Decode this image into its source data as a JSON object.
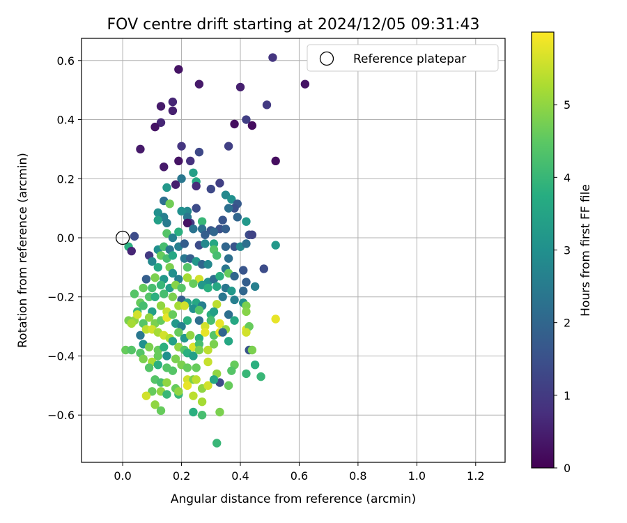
{
  "chart_data": {
    "type": "scatter",
    "title": "FOV centre drift starting at 2024/12/05 09:31:43",
    "xlabel": "Angular distance from reference (arcmin)",
    "ylabel": "Rotation from reference (arcmin)",
    "xlim": [
      -0.14,
      1.3
    ],
    "ylim": [
      -0.76,
      0.675
    ],
    "x_ticks": [
      0.0,
      0.2,
      0.4,
      0.6,
      0.8,
      1.0,
      1.2
    ],
    "x_tick_labels": [
      "0.0",
      "0.2",
      "0.4",
      "0.6",
      "0.8",
      "1.0",
      "1.2"
    ],
    "y_ticks": [
      -0.6,
      -0.4,
      -0.2,
      0.0,
      0.2,
      0.4,
      0.6
    ],
    "y_tick_labels": [
      "−0.6",
      "−0.4",
      "−0.2",
      "0.0",
      "0.2",
      "0.4",
      "0.6"
    ],
    "grid": true,
    "legend": {
      "placement": "top-right",
      "entries": [
        "Reference platepar"
      ]
    },
    "reference_point": {
      "x": 0.0,
      "y": 0.0
    },
    "colorbar": {
      "label": "Hours from first FF file",
      "colormap": "viridis",
      "range": [
        0,
        6
      ],
      "ticks": [
        0,
        1,
        2,
        3,
        4,
        5
      ],
      "tick_labels": [
        "0",
        "1",
        "2",
        "3",
        "4",
        "5"
      ]
    },
    "points": [
      [
        0.51,
        0.61,
        0.9
      ],
      [
        0.62,
        0.52,
        0.3
      ],
      [
        0.19,
        0.57,
        0.3
      ],
      [
        0.26,
        0.52,
        0.4
      ],
      [
        0.4,
        0.51,
        0.5
      ],
      [
        0.17,
        0.46,
        0.6
      ],
      [
        0.13,
        0.445,
        0.4
      ],
      [
        0.17,
        0.43,
        0.5
      ],
      [
        0.49,
        0.45,
        1.0
      ],
      [
        0.42,
        0.4,
        1.1
      ],
      [
        0.13,
        0.39,
        0.6
      ],
      [
        0.11,
        0.375,
        0.3
      ],
      [
        0.38,
        0.385,
        0.2
      ],
      [
        0.44,
        0.38,
        0.2
      ],
      [
        0.06,
        0.3,
        0.4
      ],
      [
        0.2,
        0.31,
        0.9
      ],
      [
        0.36,
        0.31,
        1.1
      ],
      [
        0.26,
        0.29,
        1.3
      ],
      [
        0.52,
        0.26,
        0.2
      ],
      [
        0.19,
        0.26,
        0.3
      ],
      [
        0.23,
        0.26,
        0.8
      ],
      [
        0.14,
        0.24,
        0.4
      ],
      [
        0.24,
        0.22,
        3.4
      ],
      [
        0.2,
        0.2,
        2.4
      ],
      [
        0.25,
        0.19,
        3.6
      ],
      [
        0.33,
        0.185,
        1.1
      ],
      [
        0.18,
        0.18,
        0.5
      ],
      [
        0.25,
        0.175,
        0.7
      ],
      [
        0.15,
        0.17,
        3.2
      ],
      [
        0.3,
        0.165,
        1.3
      ],
      [
        0.35,
        0.145,
        2.8
      ],
      [
        0.37,
        0.13,
        3.0
      ],
      [
        0.14,
        0.125,
        2.2
      ],
      [
        0.16,
        0.115,
        4.7
      ],
      [
        0.39,
        0.115,
        1.7
      ],
      [
        0.38,
        0.1,
        1.5
      ],
      [
        0.36,
        0.1,
        2.2
      ],
      [
        0.25,
        0.1,
        1.4
      ],
      [
        0.22,
        0.09,
        2.8
      ],
      [
        0.2,
        0.09,
        3.0
      ],
      [
        0.12,
        0.085,
        3.0
      ],
      [
        0.39,
        0.07,
        2.0
      ],
      [
        0.22,
        0.07,
        2.4
      ],
      [
        0.14,
        0.07,
        2.6
      ],
      [
        0.12,
        0.06,
        3.4
      ],
      [
        0.27,
        0.055,
        4.0
      ],
      [
        0.42,
        0.055,
        3.2
      ],
      [
        0.15,
        0.05,
        2.5
      ],
      [
        0.23,
        0.05,
        1.0
      ],
      [
        0.22,
        0.05,
        0.3
      ],
      [
        0.34,
        0.06,
        1.6
      ],
      [
        0.33,
        0.03,
        1.5
      ],
      [
        0.35,
        0.03,
        1.8
      ],
      [
        0.3,
        0.025,
        1.6
      ],
      [
        0.31,
        0.02,
        2.0
      ],
      [
        0.24,
        0.03,
        2.3
      ],
      [
        0.27,
        0.03,
        2.2
      ],
      [
        0.19,
        0.02,
        3.8
      ],
      [
        0.15,
        0.015,
        4.4
      ],
      [
        0.43,
        0.01,
        1.4
      ],
      [
        0.44,
        0.01,
        1.2
      ],
      [
        0.04,
        0.005,
        1.4
      ],
      [
        0.28,
        0.01,
        1.8
      ],
      [
        0.17,
        0.0,
        2.6
      ],
      [
        0.52,
        -0.025,
        3.2
      ],
      [
        0.02,
        -0.03,
        3.8
      ],
      [
        0.03,
        -0.045,
        0.6
      ],
      [
        0.09,
        -0.06,
        1.0
      ],
      [
        0.12,
        -0.04,
        3.0
      ],
      [
        0.14,
        -0.03,
        4.2
      ],
      [
        0.16,
        -0.04,
        2.4
      ],
      [
        0.19,
        -0.03,
        2.6
      ],
      [
        0.21,
        -0.02,
        1.8
      ],
      [
        0.26,
        -0.025,
        1.4
      ],
      [
        0.28,
        -0.02,
        2.8
      ],
      [
        0.31,
        -0.02,
        3.6
      ],
      [
        0.31,
        -0.04,
        4.4
      ],
      [
        0.35,
        -0.03,
        2.0
      ],
      [
        0.38,
        -0.03,
        1.6
      ],
      [
        0.4,
        -0.03,
        2.8
      ],
      [
        0.42,
        -0.02,
        2.2
      ],
      [
        0.1,
        -0.08,
        2.8
      ],
      [
        0.13,
        -0.06,
        4.6
      ],
      [
        0.15,
        -0.07,
        4.2
      ],
      [
        0.17,
        -0.06,
        3.6
      ],
      [
        0.21,
        -0.07,
        2.4
      ],
      [
        0.23,
        -0.07,
        1.8
      ],
      [
        0.25,
        -0.08,
        3.2
      ],
      [
        0.27,
        -0.09,
        2.0
      ],
      [
        0.29,
        -0.09,
        2.8
      ],
      [
        0.32,
        -0.06,
        4.2
      ],
      [
        0.36,
        -0.07,
        2.2
      ],
      [
        0.12,
        -0.1,
        3.6
      ],
      [
        0.16,
        -0.1,
        4.8
      ],
      [
        0.22,
        -0.1,
        4.4
      ],
      [
        0.35,
        -0.105,
        2.4
      ],
      [
        0.41,
        -0.11,
        1.6
      ],
      [
        0.48,
        -0.105,
        1.4
      ],
      [
        0.08,
        -0.14,
        1.8
      ],
      [
        0.11,
        -0.135,
        4.8
      ],
      [
        0.14,
        -0.14,
        3.2
      ],
      [
        0.17,
        -0.12,
        3.0
      ],
      [
        0.19,
        -0.14,
        2.6
      ],
      [
        0.22,
        -0.135,
        5.2
      ],
      [
        0.26,
        -0.14,
        5.6
      ],
      [
        0.29,
        -0.15,
        3.0
      ],
      [
        0.31,
        -0.14,
        2.2
      ],
      [
        0.33,
        -0.13,
        3.8
      ],
      [
        0.36,
        -0.12,
        4.6
      ],
      [
        0.38,
        -0.13,
        2.0
      ],
      [
        0.42,
        -0.15,
        1.8
      ],
      [
        0.45,
        -0.165,
        2.6
      ],
      [
        0.07,
        -0.17,
        4.6
      ],
      [
        0.1,
        -0.17,
        4.2
      ],
      [
        0.13,
        -0.16,
        4.0
      ],
      [
        0.16,
        -0.17,
        3.4
      ],
      [
        0.18,
        -0.16,
        4.9
      ],
      [
        0.2,
        -0.17,
        4.4
      ],
      [
        0.24,
        -0.155,
        4.6
      ],
      [
        0.27,
        -0.16,
        3.2
      ],
      [
        0.29,
        -0.17,
        3.8
      ],
      [
        0.32,
        -0.165,
        3.6
      ],
      [
        0.35,
        -0.17,
        2.4
      ],
      [
        0.37,
        -0.18,
        3.2
      ],
      [
        0.41,
        -0.18,
        2.0
      ],
      [
        0.04,
        -0.19,
        4.4
      ],
      [
        0.09,
        -0.2,
        4.4
      ],
      [
        0.11,
        -0.2,
        3.8
      ],
      [
        0.14,
        -0.19,
        4.2
      ],
      [
        0.17,
        -0.2,
        4.8
      ],
      [
        0.2,
        -0.21,
        1.8
      ],
      [
        0.22,
        -0.22,
        3.4
      ],
      [
        0.25,
        -0.22,
        3.6
      ],
      [
        0.27,
        -0.23,
        2.6
      ],
      [
        0.32,
        -0.225,
        5.4
      ],
      [
        0.34,
        -0.2,
        2.4
      ],
      [
        0.38,
        -0.21,
        2.6
      ],
      [
        0.41,
        -0.22,
        3.0
      ],
      [
        0.42,
        -0.23,
        4.8
      ],
      [
        0.06,
        -0.22,
        4.6
      ],
      [
        0.05,
        -0.25,
        4.0
      ],
      [
        0.07,
        -0.23,
        4.2
      ],
      [
        0.1,
        -0.25,
        3.4
      ],
      [
        0.13,
        -0.23,
        5.0
      ],
      [
        0.15,
        -0.25,
        5.5
      ],
      [
        0.19,
        -0.23,
        5.2
      ],
      [
        0.21,
        -0.23,
        5.6
      ],
      [
        0.24,
        -0.24,
        3.0
      ],
      [
        0.26,
        -0.245,
        4.4
      ],
      [
        0.3,
        -0.26,
        3.8
      ],
      [
        0.31,
        -0.25,
        3.4
      ],
      [
        0.36,
        -0.26,
        2.2
      ],
      [
        0.42,
        -0.25,
        4.9
      ],
      [
        0.52,
        -0.275,
        5.8
      ],
      [
        0.04,
        -0.28,
        5.0
      ],
      [
        0.02,
        -0.28,
        4.8
      ],
      [
        0.03,
        -0.29,
        5.2
      ],
      [
        0.05,
        -0.26,
        5.6
      ],
      [
        0.07,
        -0.29,
        4.4
      ],
      [
        0.09,
        -0.27,
        5.0
      ],
      [
        0.11,
        -0.29,
        4.8
      ],
      [
        0.13,
        -0.28,
        4.6
      ],
      [
        0.15,
        -0.27,
        5.8
      ],
      [
        0.17,
        -0.26,
        4.6
      ],
      [
        0.18,
        -0.29,
        3.2
      ],
      [
        0.2,
        -0.3,
        2.6
      ],
      [
        0.22,
        -0.28,
        3.8
      ],
      [
        0.26,
        -0.28,
        2.2
      ],
      [
        0.28,
        -0.3,
        5.6
      ],
      [
        0.3,
        -0.28,
        4.2
      ],
      [
        0.33,
        -0.29,
        5.8
      ],
      [
        0.35,
        -0.31,
        5.0
      ],
      [
        0.38,
        -0.28,
        3.6
      ],
      [
        0.42,
        -0.31,
        5.7
      ],
      [
        0.43,
        -0.3,
        4.6
      ],
      [
        0.06,
        -0.33,
        2.4
      ],
      [
        0.08,
        -0.31,
        5.4
      ],
      [
        0.1,
        -0.31,
        5.6
      ],
      [
        0.12,
        -0.32,
        5.2
      ],
      [
        0.14,
        -0.33,
        5.6
      ],
      [
        0.16,
        -0.34,
        5.3
      ],
      [
        0.19,
        -0.32,
        4.6
      ],
      [
        0.21,
        -0.34,
        3.2
      ],
      [
        0.23,
        -0.33,
        5.0
      ],
      [
        0.26,
        -0.34,
        3.8
      ],
      [
        0.28,
        -0.32,
        5.8
      ],
      [
        0.31,
        -0.33,
        4.4
      ],
      [
        0.33,
        -0.32,
        5.8
      ],
      [
        0.34,
        -0.32,
        2.0
      ],
      [
        0.36,
        -0.35,
        3.6
      ],
      [
        0.42,
        -0.32,
        5.6
      ],
      [
        0.07,
        -0.36,
        3.0
      ],
      [
        0.09,
        -0.37,
        4.8
      ],
      [
        0.12,
        -0.38,
        4.6
      ],
      [
        0.14,
        -0.37,
        3.8
      ],
      [
        0.17,
        -0.35,
        3.4
      ],
      [
        0.19,
        -0.37,
        5.0
      ],
      [
        0.21,
        -0.38,
        4.4
      ],
      [
        0.24,
        -0.37,
        5.7
      ],
      [
        0.26,
        -0.36,
        4.2
      ],
      [
        0.29,
        -0.38,
        5.4
      ],
      [
        0.31,
        -0.36,
        4.8
      ],
      [
        0.43,
        -0.38,
        1.6
      ],
      [
        0.44,
        -0.38,
        4.8
      ],
      [
        0.01,
        -0.38,
        4.6
      ],
      [
        0.03,
        -0.38,
        4.4
      ],
      [
        0.06,
        -0.39,
        4.4
      ],
      [
        0.07,
        -0.41,
        4.8
      ],
      [
        0.1,
        -0.42,
        5.2
      ],
      [
        0.12,
        -0.4,
        4.6
      ],
      [
        0.15,
        -0.4,
        3.0
      ],
      [
        0.18,
        -0.41,
        4.8
      ],
      [
        0.22,
        -0.39,
        3.8
      ],
      [
        0.24,
        -0.4,
        3.4
      ],
      [
        0.26,
        -0.38,
        4.8
      ],
      [
        0.29,
        -0.42,
        5.5
      ],
      [
        0.09,
        -0.44,
        4.4
      ],
      [
        0.12,
        -0.43,
        3.8
      ],
      [
        0.15,
        -0.44,
        4.4
      ],
      [
        0.17,
        -0.45,
        4.4
      ],
      [
        0.2,
        -0.43,
        4.8
      ],
      [
        0.22,
        -0.44,
        4.6
      ],
      [
        0.25,
        -0.44,
        4.6
      ],
      [
        0.38,
        -0.43,
        4.6
      ],
      [
        0.37,
        -0.45,
        4.4
      ],
      [
        0.45,
        -0.43,
        3.8
      ],
      [
        0.42,
        -0.46,
        4.0
      ],
      [
        0.11,
        -0.48,
        4.4
      ],
      [
        0.13,
        -0.49,
        4.2
      ],
      [
        0.15,
        -0.49,
        5.0
      ],
      [
        0.22,
        -0.48,
        5.6
      ],
      [
        0.24,
        -0.48,
        4.8
      ],
      [
        0.25,
        -0.48,
        5.4
      ],
      [
        0.32,
        -0.46,
        5.0
      ],
      [
        0.33,
        -0.49,
        1.4
      ],
      [
        0.36,
        -0.5,
        4.6
      ],
      [
        0.47,
        -0.47,
        4.0
      ],
      [
        0.13,
        -0.52,
        5.0
      ],
      [
        0.15,
        -0.53,
        4.0
      ],
      [
        0.18,
        -0.51,
        4.6
      ],
      [
        0.19,
        -0.53,
        4.0
      ],
      [
        0.19,
        -0.52,
        5.0
      ],
      [
        0.22,
        -0.5,
        5.8
      ],
      [
        0.27,
        -0.51,
        5.0
      ],
      [
        0.29,
        -0.5,
        5.6
      ],
      [
        0.31,
        -0.48,
        3.6
      ],
      [
        0.1,
        -0.52,
        4.6
      ],
      [
        0.08,
        -0.535,
        5.6
      ],
      [
        0.24,
        -0.535,
        5.4
      ],
      [
        0.11,
        -0.565,
        5.0
      ],
      [
        0.27,
        -0.555,
        5.2
      ],
      [
        0.13,
        -0.585,
        4.6
      ],
      [
        0.24,
        -0.59,
        3.8
      ],
      [
        0.27,
        -0.6,
        4.2
      ],
      [
        0.33,
        -0.59,
        4.8
      ],
      [
        0.32,
        -0.695,
        4.0
      ]
    ]
  }
}
